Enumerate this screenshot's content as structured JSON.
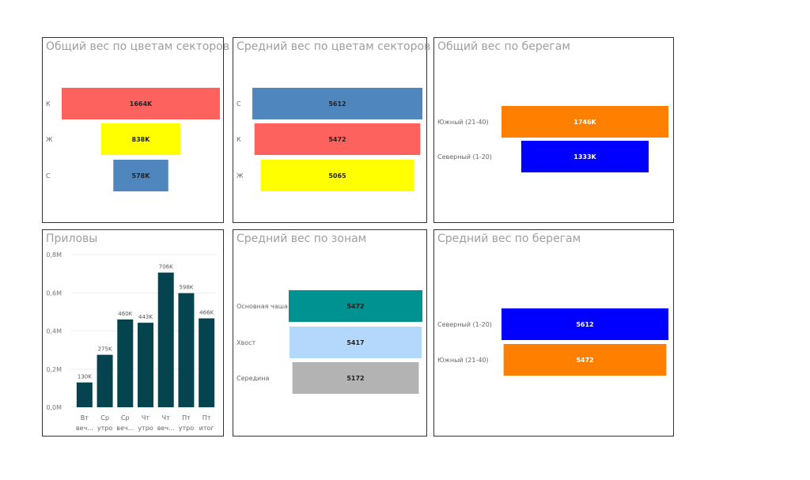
{
  "chart_data": [
    {
      "id": "p1",
      "type": "funnel",
      "title": "Общий вес по цветам секторов",
      "categories": [
        "К",
        "Ж",
        "С"
      ],
      "values": [
        1664,
        838,
        578
      ],
      "labels": [
        "1664K",
        "838K",
        "578K"
      ],
      "colors": [
        "#fd625e",
        "#ffff00",
        "#5086be"
      ],
      "label_color": "#222222"
    },
    {
      "id": "p2",
      "type": "funnel",
      "title": "Средний вес по цветам секторов",
      "categories": [
        "С",
        "К",
        "Ж"
      ],
      "values": [
        5612,
        5472,
        5065
      ],
      "labels": [
        "5612",
        "5472",
        "5065"
      ],
      "colors": [
        "#5086be",
        "#fd625e",
        "#ffff00"
      ],
      "label_color": "#222222"
    },
    {
      "id": "p3",
      "type": "funnel",
      "title": "Общий вес по берегам",
      "categories": [
        "Южный (21-40)",
        "Северный (1-20)"
      ],
      "values": [
        1746,
        1333
      ],
      "labels": [
        "1746K",
        "1333K"
      ],
      "colors": [
        "#ff7f00",
        "#0000ff"
      ],
      "label_color": "#ffffff"
    },
    {
      "id": "p4",
      "type": "bar",
      "title": "Приловы",
      "categories": [
        [
          "Вт",
          "веч..."
        ],
        [
          "Ср",
          "утро"
        ],
        [
          "Ср",
          "веч..."
        ],
        [
          "Чт",
          "утро"
        ],
        [
          "Чт",
          "веч..."
        ],
        [
          "Пт",
          "утро"
        ],
        [
          "Пт",
          "итог"
        ]
      ],
      "values": [
        130,
        275,
        460,
        443,
        706,
        598,
        466
      ],
      "labels": [
        "130K",
        "275K",
        "460K",
        "443K",
        "706K",
        "598K",
        "466K"
      ],
      "y_ticks": [
        "0,0M",
        "0,2M",
        "0,4M",
        "0,6M",
        "0,8M"
      ],
      "ylim": [
        0,
        800
      ],
      "grid": true,
      "colors": [
        "#05434e"
      ]
    },
    {
      "id": "p5",
      "type": "funnel",
      "title": "Средний вес по зонам",
      "categories": [
        "Основная чаша",
        "Хвост",
        "Середина"
      ],
      "values": [
        5472,
        5417,
        5172
      ],
      "labels": [
        "5472",
        "5417",
        "5172"
      ],
      "colors": [
        "#009191",
        "#b3d8fc",
        "#b3b3b3"
      ],
      "label_color": "#222222"
    },
    {
      "id": "p6",
      "type": "funnel",
      "title": "Средний вес по берегам",
      "categories": [
        "Северный (1-20)",
        "Южный (21-40)"
      ],
      "values": [
        5612,
        5472
      ],
      "labels": [
        "5612",
        "5472"
      ],
      "colors": [
        "#0000ff",
        "#ff7f00"
      ],
      "label_color": "#ffffff"
    }
  ]
}
